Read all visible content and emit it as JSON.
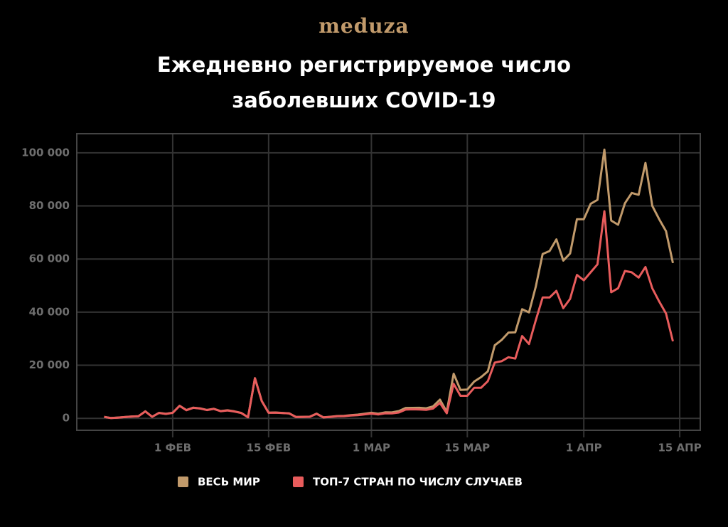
{
  "brand": "meduza",
  "chart_data": {
    "type": "line",
    "title": "Ежедневно регистрируемое число заболевших COVID-19",
    "x": [
      "01-22",
      "01-23",
      "01-24",
      "01-25",
      "01-26",
      "01-27",
      "01-28",
      "01-29",
      "01-30",
      "01-31",
      "02-01",
      "02-02",
      "02-03",
      "02-04",
      "02-05",
      "02-06",
      "02-07",
      "02-08",
      "02-09",
      "02-10",
      "02-11",
      "02-12",
      "02-13",
      "02-14",
      "02-15",
      "02-16",
      "02-17",
      "02-18",
      "02-19",
      "02-20",
      "02-21",
      "02-22",
      "02-23",
      "02-24",
      "02-25",
      "02-26",
      "02-27",
      "02-28",
      "02-29",
      "03-01",
      "03-02",
      "03-03",
      "03-04",
      "03-05",
      "03-06",
      "03-07",
      "03-08",
      "03-09",
      "03-10",
      "03-11",
      "03-12",
      "03-13",
      "03-14",
      "03-15",
      "03-16",
      "03-17",
      "03-18",
      "03-19",
      "03-20",
      "03-21",
      "03-22",
      "03-23",
      "03-24",
      "03-25",
      "03-26",
      "03-27",
      "03-28",
      "03-29",
      "03-30",
      "03-31",
      "04-01",
      "04-02",
      "04-03",
      "04-04",
      "04-05",
      "04-06",
      "04-07",
      "04-08",
      "04-09",
      "04-10",
      "04-11",
      "04-12",
      "04-13",
      "04-14"
    ],
    "series": [
      {
        "name": "ВЕСЬ МИР",
        "color": "#c19a6b",
        "values": [
          555,
          98,
          287,
          493,
          684,
          809,
          2651,
          588,
          2068,
          1693,
          2111,
          4749,
          3094,
          4011,
          3743,
          3159,
          3597,
          2729,
          3030,
          2612,
          2040,
          419,
          15147,
          6517,
          2145,
          2194,
          2034,
          1878,
          503,
          558,
          621,
          1757,
          379,
          595,
          859,
          934,
          1212,
          1397,
          1749,
          2084,
          1744,
          2251,
          2234,
          2719,
          3900,
          3942,
          3960,
          3777,
          4499,
          7049,
          2441,
          16806,
          10700,
          10860,
          13845,
          15500,
          17700,
          27500,
          29500,
          32300,
          32400,
          41100,
          39900,
          49700,
          61900,
          63000,
          67400,
          59400,
          62100,
          75000,
          75000,
          80800,
          82300,
          101200,
          74500,
          72900,
          81000,
          84900,
          84200,
          96200,
          80000,
          75000,
          70500,
          58500
        ]
      },
      {
        "name": "ТОП-7 СТРАН ПО ЧИСЛУ СЛУЧАЕВ",
        "color": "#e85c5c",
        "values": [
          540,
          95,
          280,
          480,
          670,
          790,
          2600,
          570,
          2020,
          1650,
          2070,
          4700,
          3050,
          3960,
          3700,
          3120,
          3550,
          2690,
          2980,
          2570,
          2000,
          390,
          15100,
          6480,
          2100,
          2150,
          1990,
          1840,
          470,
          520,
          580,
          1700,
          340,
          540,
          780,
          820,
          1050,
          1180,
          1500,
          1800,
          1450,
          1900,
          1850,
          2200,
          3300,
          3400,
          3350,
          3200,
          3700,
          5800,
          1900,
          13000,
          8500,
          8500,
          11500,
          11500,
          14000,
          21000,
          21500,
          23000,
          22500,
          31000,
          28000,
          37000,
          45500,
          45500,
          48000,
          41500,
          45000,
          54000,
          52000,
          55000,
          58000,
          78000,
          47500,
          49000,
          55500,
          55000,
          53000,
          57000,
          49000,
          44000,
          39500,
          29000
        ]
      }
    ],
    "xlim": [
      "01-18",
      "04-18"
    ],
    "xticks": [
      {
        "value": "02-01",
        "label": "1 ФЕВ"
      },
      {
        "value": "02-15",
        "label": "15 ФЕВ"
      },
      {
        "value": "03-01",
        "label": "1 МАР"
      },
      {
        "value": "03-15",
        "label": "15 МАР"
      },
      {
        "value": "04-01",
        "label": "1 АПР"
      },
      {
        "value": "04-15",
        "label": "15 АПР"
      }
    ],
    "ylim": [
      -4500,
      107200
    ],
    "yticks": [
      0,
      {
        "value": 20000,
        "label": "20 000"
      },
      {
        "value": 40000,
        "label": "40 000"
      },
      {
        "value": 60000,
        "label": "60 000"
      },
      {
        "value": 80000,
        "label": "80 000"
      },
      {
        "value": 100000,
        "label": "100 000"
      }
    ],
    "grid": true
  }
}
